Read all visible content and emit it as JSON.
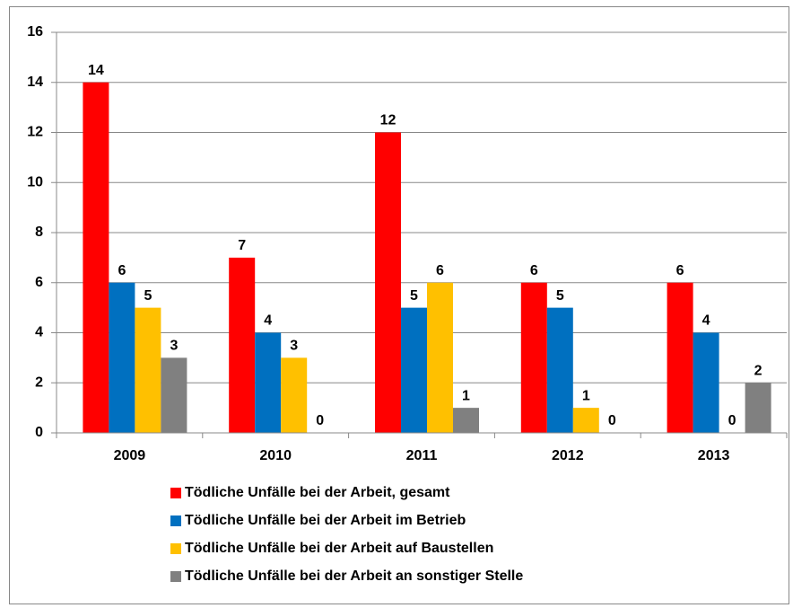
{
  "chart_data": {
    "type": "bar",
    "categories": [
      "2009",
      "2010",
      "2011",
      "2012",
      "2013"
    ],
    "series": [
      {
        "name": "Tödliche Unfälle bei der Arbeit, gesamt",
        "color": "#ff0000",
        "values": [
          14,
          7,
          12,
          6,
          6
        ]
      },
      {
        "name": "Tödliche Unfälle bei der Arbeit im Betrieb",
        "color": "#0070c0",
        "values": [
          6,
          4,
          5,
          5,
          4
        ]
      },
      {
        "name": "Tödliche Unfälle bei der Arbeit auf Baustellen",
        "color": "#ffc000",
        "values": [
          5,
          3,
          6,
          1,
          0
        ]
      },
      {
        "name": "Tödliche Unfälle bei der Arbeit an sonstiger Stelle",
        "color": "#808080",
        "values": [
          3,
          0,
          1,
          0,
          2
        ]
      }
    ],
    "ylim": [
      0,
      16
    ],
    "yticks": [
      0,
      2,
      4,
      6,
      8,
      10,
      12,
      14,
      16
    ],
    "grid": true,
    "legend": "bottom"
  }
}
